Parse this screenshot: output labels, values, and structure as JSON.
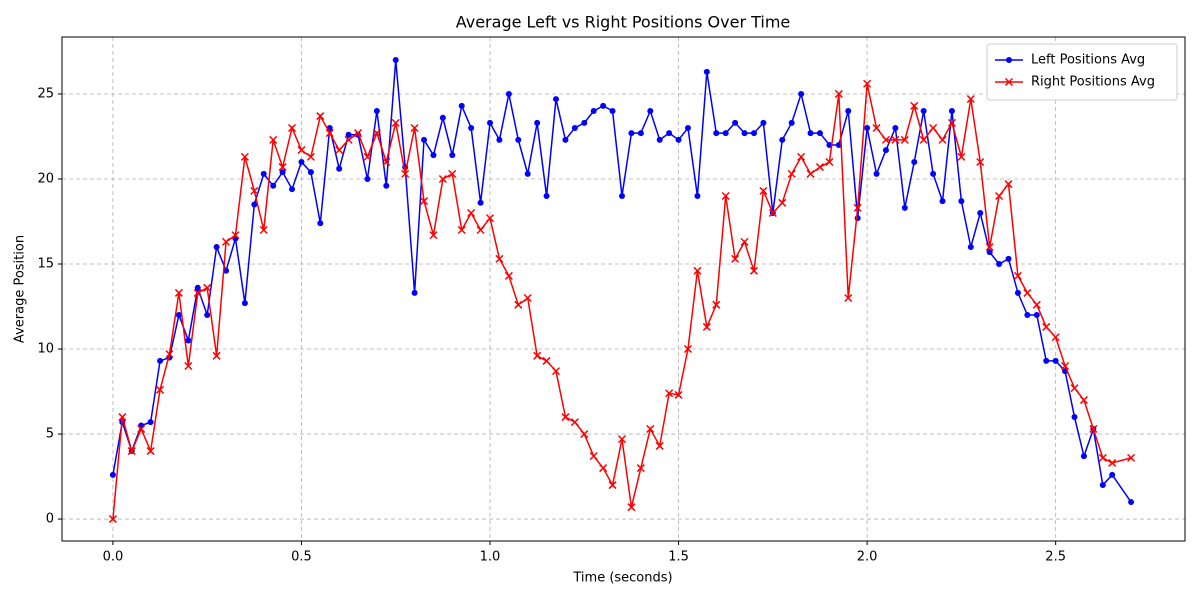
{
  "chart_data": {
    "type": "line",
    "title": "Average Left vs Right Positions Over Time",
    "x_label": "Time (seconds)",
    "y_label": "Average Position",
    "x": [
      0,
      0.025,
      0.05,
      0.075,
      0.1,
      0.125,
      0.15,
      0.175,
      0.2,
      0.225,
      0.25,
      0.275,
      0.3,
      0.325,
      0.35,
      0.375,
      0.4,
      0.425,
      0.45,
      0.475,
      0.5,
      0.525,
      0.55,
      0.575,
      0.6,
      0.625,
      0.65,
      0.675,
      0.7,
      0.725,
      0.75,
      0.775,
      0.8,
      0.825,
      0.85,
      0.875,
      0.9,
      0.925,
      0.95,
      0.975,
      1.0,
      1.025,
      1.05,
      1.075,
      1.1,
      1.125,
      1.15,
      1.175,
      1.2,
      1.225,
      1.25,
      1.275,
      1.3,
      1.325,
      1.35,
      1.375,
      1.4,
      1.425,
      1.45,
      1.475,
      1.5,
      1.525,
      1.55,
      1.575,
      1.6,
      1.625,
      1.65,
      1.675,
      1.7,
      1.725,
      1.75,
      1.775,
      1.8,
      1.825,
      1.85,
      1.875,
      1.9,
      1.925,
      1.95,
      1.975,
      2.0,
      2.025,
      2.05,
      2.075,
      2.1,
      2.125,
      2.15,
      2.175,
      2.2,
      2.225,
      2.25,
      2.275,
      2.3,
      2.325,
      2.35,
      2.375,
      2.4,
      2.425,
      2.45,
      2.475,
      2.5,
      2.525,
      2.55,
      2.575,
      2.6,
      2.625,
      2.65,
      2.7
    ],
    "series": [
      {
        "name": "Left Positions Avg",
        "color": "#0000ff",
        "marker": "circle",
        "values": [
          2.6,
          5.7,
          4,
          5.5,
          5.7,
          9.3,
          9.5,
          12,
          10.5,
          13.6,
          12,
          16,
          14.6,
          16.5,
          12.7,
          18.5,
          20.3,
          19.6,
          20.4,
          19.4,
          21,
          20.4,
          17.4,
          23,
          20.6,
          22.6,
          22.6,
          20,
          24,
          19.6,
          27,
          20.7,
          13.3,
          22.3,
          21.4,
          23.6,
          21.4,
          24.3,
          23,
          18.6,
          23.3,
          22.3,
          25,
          22.3,
          20.3,
          23.3,
          19,
          24.7,
          22.3,
          23,
          23.3,
          24,
          24.3,
          24,
          19,
          22.7,
          22.7,
          24,
          22.3,
          22.7,
          22.3,
          23,
          19,
          26.3,
          22.7,
          22.7,
          23.3,
          22.7,
          22.7,
          23.3,
          18,
          22.3,
          23.3,
          25,
          22.7,
          22.7,
          22,
          22,
          24,
          17.7,
          23,
          20.3,
          21.7,
          23,
          18.3,
          21,
          24,
          20.3,
          18.7,
          24,
          18.7,
          16,
          18,
          15.7,
          15,
          15.3,
          13.3,
          12,
          12,
          9.3,
          9.3,
          8.7,
          6,
          3.7,
          5.3,
          2,
          2.6,
          1
        ]
      },
      {
        "name": "Right Positions Avg",
        "color": "#ff0000",
        "marker": "x",
        "values": [
          0,
          6,
          4,
          5.3,
          4,
          7.6,
          9.7,
          13.3,
          9,
          13.3,
          13.6,
          9.6,
          16.3,
          16.7,
          21.3,
          19.3,
          17,
          22.3,
          20.7,
          23,
          21.7,
          21.3,
          23.7,
          22.7,
          21.7,
          22.3,
          22.7,
          21.3,
          22.7,
          21,
          23.3,
          20.3,
          23,
          18.7,
          16.7,
          20,
          20.3,
          17,
          18,
          17,
          17.7,
          15.3,
          14.3,
          12.6,
          13,
          9.6,
          9.3,
          8.7,
          6,
          5.7,
          5,
          3.7,
          3,
          2,
          4.7,
          0.7,
          3,
          5.3,
          4.3,
          7.4,
          7.3,
          10,
          14.6,
          11.3,
          12.6,
          19,
          15.3,
          16.3,
          14.6,
          19.3,
          18,
          18.6,
          20.3,
          21.3,
          20.3,
          20.7,
          21,
          25,
          13,
          18.3,
          25.6,
          23,
          22.3,
          22.3,
          22.3,
          24.3,
          22.3,
          23,
          22.3,
          23.3,
          21.3,
          24.7,
          21,
          16,
          19,
          19.7,
          14.3,
          13.3,
          12.6,
          11.3,
          10.7,
          9,
          7.7,
          7,
          5.3,
          3.6,
          3.3,
          3.6
        ]
      }
    ],
    "xlim": [
      -0.135,
      2.843
    ],
    "ylim": [
      -1.29,
      28.35
    ],
    "xticks": [
      {
        "value": 0,
        "label": "0.0"
      },
      {
        "value": 0.5,
        "label": "0.5"
      },
      {
        "value": 1,
        "label": "1.0"
      },
      {
        "value": 1.5,
        "label": "1.5"
      },
      {
        "value": 2,
        "label": "2.0"
      },
      {
        "value": 2.5,
        "label": "2.5"
      }
    ],
    "yticks": [
      0,
      5,
      10,
      15,
      20,
      25
    ],
    "grid": true,
    "legend": "upper-right"
  }
}
